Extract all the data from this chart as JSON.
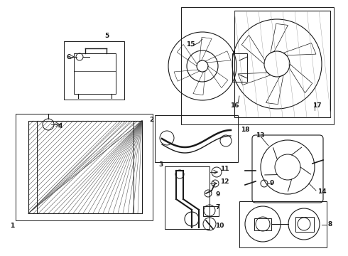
{
  "bg_color": "#ffffff",
  "line_color": "#1a1a1a",
  "fig_width": 4.9,
  "fig_height": 3.6,
  "dpi": 100,
  "gray": "#888888",
  "light_gray": "#cccccc"
}
